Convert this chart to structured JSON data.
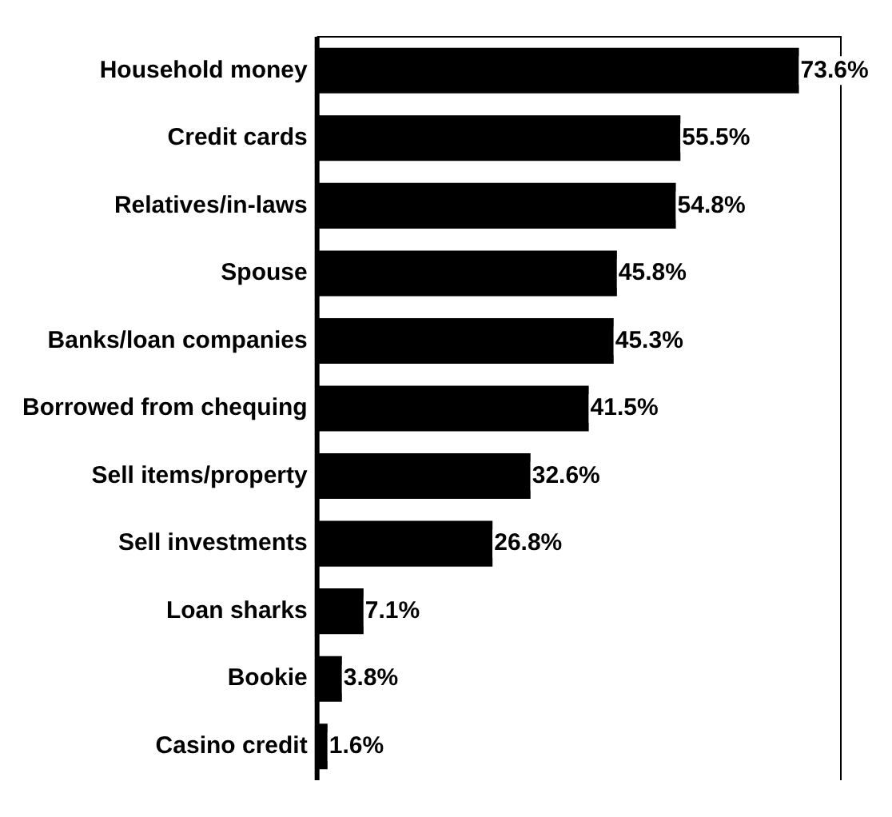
{
  "chart_data": {
    "type": "bar",
    "orientation": "horizontal",
    "grid": false,
    "legend": false,
    "tick_labels": "y",
    "categories": [
      "Household money",
      "Credit cards",
      "Relatives/in-laws",
      "Spouse",
      "Banks/loan companies",
      "Borrowed from chequing",
      "Sell items/property",
      "Sell investments",
      "Loan sharks",
      "Bookie",
      "Casino credit"
    ],
    "series": [
      {
        "color": "#000000",
        "values": [
          73.6,
          55.5,
          54.8,
          45.8,
          45.3,
          41.5,
          32.6,
          26.8,
          7.1,
          3.8,
          1.6
        ],
        "value_labels": [
          "73.6%",
          "55.5%",
          "54.8%",
          "45.8%",
          "45.3%",
          "41.5%",
          "32.6%",
          "26.8%",
          "7.1%",
          "3.8%",
          "1.6%"
        ]
      }
    ]
  }
}
